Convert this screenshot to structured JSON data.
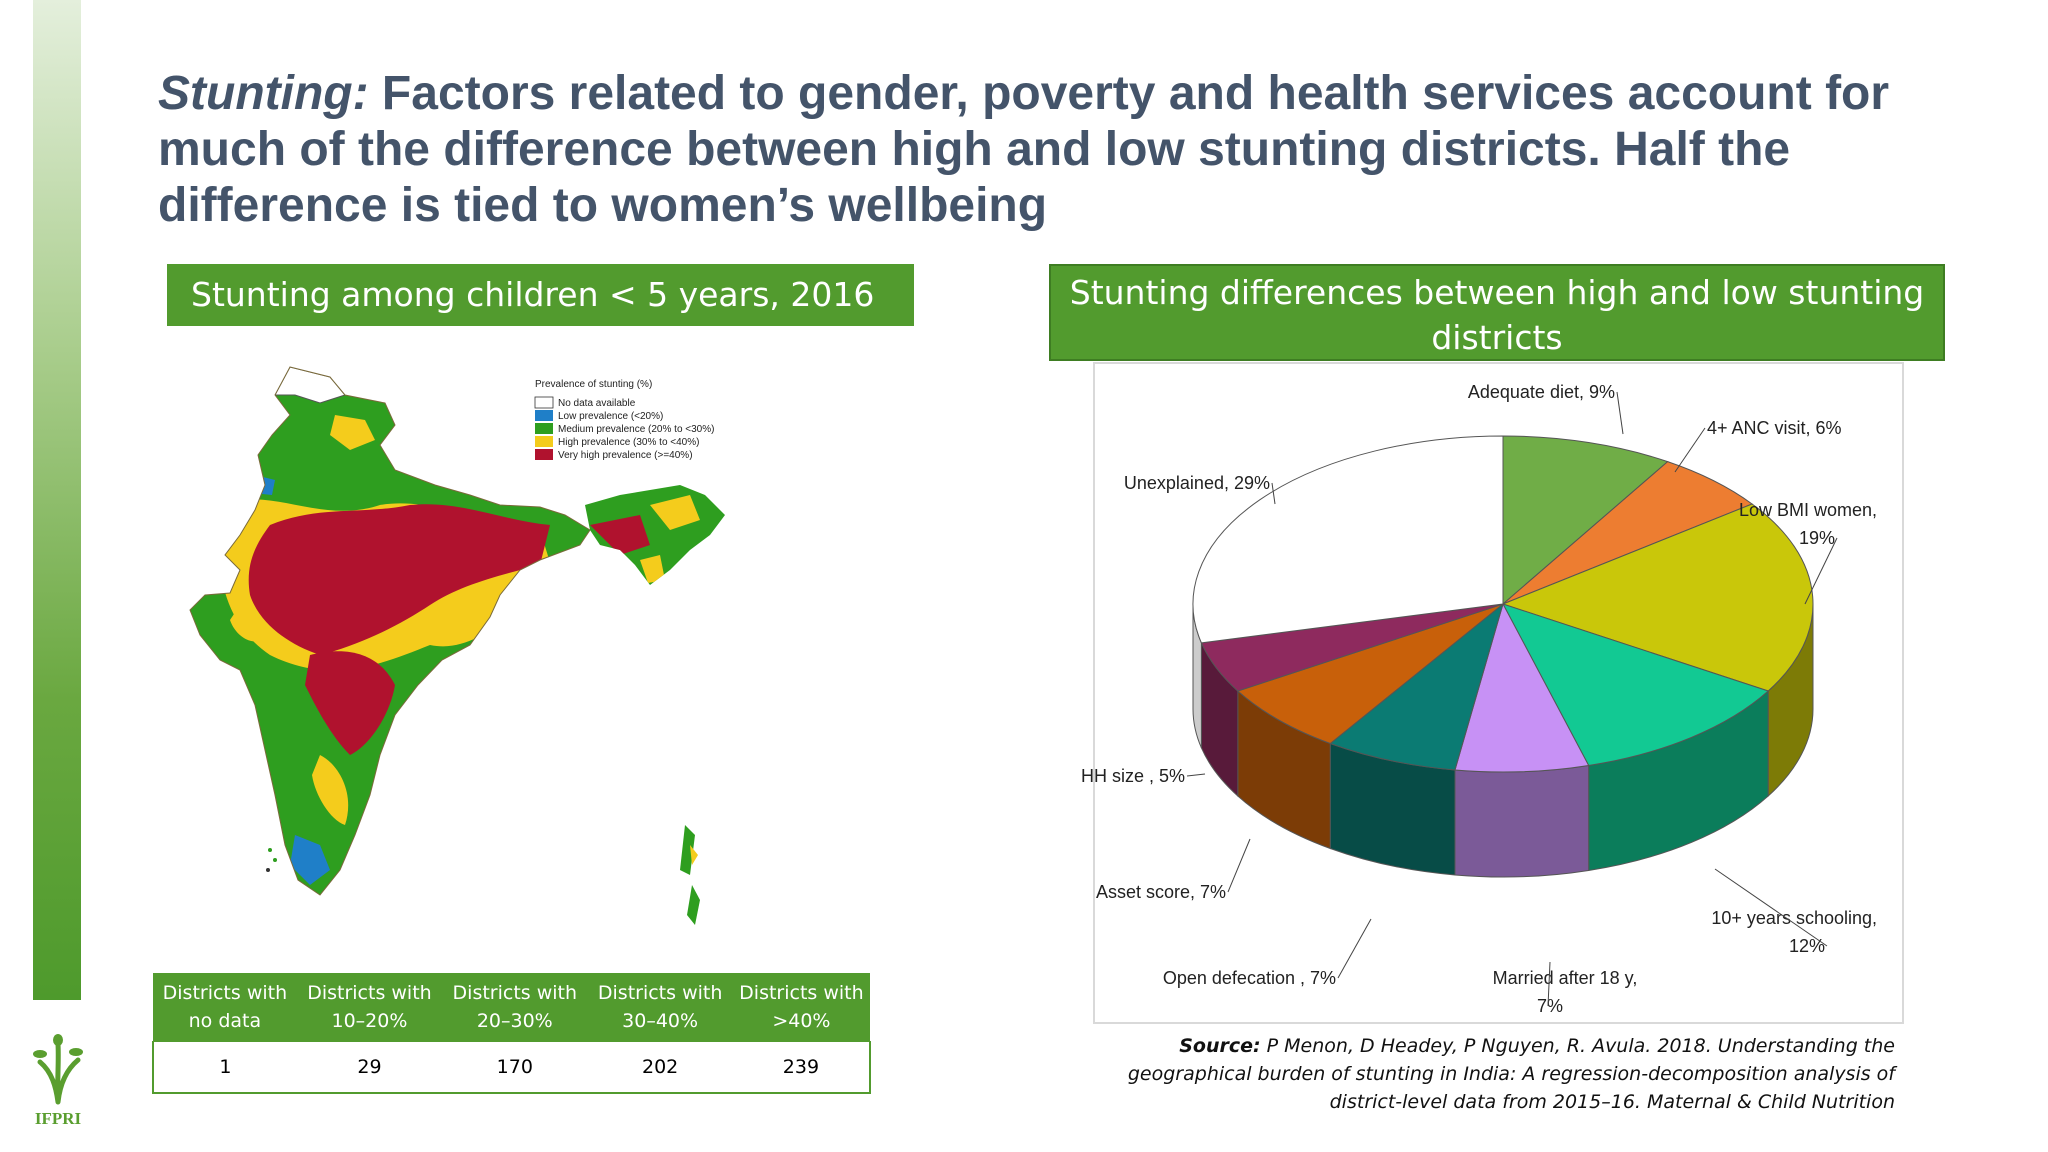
{
  "slide": {
    "title_lead": "Stunting:",
    "title_rest": " Factors related to gender, poverty and health services account for much of the difference between high and low stunting districts.  Half the difference is tied to women’s wellbeing",
    "left_banner": "Stunting among children < 5 years, 2016",
    "right_banner": "Stunting differences between high and low stunting districts",
    "logo_text": "IFPRI",
    "source_label": "Source:",
    "source_text": " P Menon, D Headey, P Nguyen, R. Avula. 2018. Understanding the geographical burden of stunting in India: A regression-decomposition analysis of district-level data from 2015–16. Maternal & Child Nutrition"
  },
  "map": {
    "legend_title": "Prevalence of stunting (%)",
    "legend": [
      {
        "label": "No data available",
        "color": "#ffffff"
      },
      {
        "label": "Low prevalence (<20%)",
        "color": "#1f7fc8"
      },
      {
        "label": "Medium prevalence (20% to <30%)",
        "color": "#2e9e1f"
      },
      {
        "label": "High prevalence (30% to <40%)",
        "color": "#f4cc1c"
      },
      {
        "label": "Very high prevalence (>=40%)",
        "color": "#b0122e"
      }
    ]
  },
  "table": {
    "headers": [
      "Districts with no data",
      "Districts with 10–20%",
      "Districts with 20–30%",
      "Districts with 30–40%",
      "Districts with >40%"
    ],
    "values": [
      "1",
      "29",
      "170",
      "202",
      "239"
    ]
  },
  "chart_data": {
    "type": "pie",
    "title": "Stunting differences between high and low stunting districts",
    "slices": [
      {
        "label": "Adequate diet, 9%",
        "value": 9,
        "color": "#70ad47"
      },
      {
        "label": "4+ ANC visit, 6%",
        "value": 6,
        "color": "#ed7d31"
      },
      {
        "label": "Low BMI women, 19%",
        "value": 19,
        "color": "#c9c70a"
      },
      {
        "label": "10+ years schooling, 12%",
        "value": 12,
        "color": "#12c993"
      },
      {
        "label": "Married after 18 y, 7%",
        "value": 7,
        "color": "#c791f5"
      },
      {
        "label": "Open defecation , 7%",
        "value": 7,
        "color": "#0b7b73"
      },
      {
        "label": "Asset score, 7%",
        "value": 7,
        "color": "#c8600a"
      },
      {
        "label": "HH size , 5%",
        "value": 5,
        "color": "#8e2a5e"
      },
      {
        "label": "Unexplained, 29%",
        "value": 29,
        "color": "#ffffff"
      }
    ]
  }
}
